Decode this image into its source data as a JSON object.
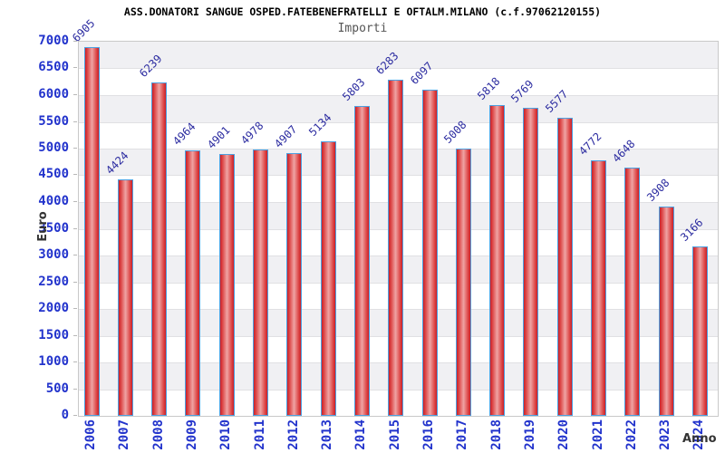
{
  "header": {
    "title": "ASS.DONATORI SANGUE OSPED.FATEBENEFRATELLI E OFTALM.MILANO (c.f.97062120155)",
    "subtitle": "Importi"
  },
  "chart_data": {
    "type": "bar",
    "title": "ASS.DONATORI SANGUE OSPED.FATEBENEFRATELLI E OFTALM.MILANO (c.f.97062120155)",
    "subtitle": "Importi",
    "xlabel": "Anno",
    "ylabel": "Euro",
    "categories": [
      "2006",
      "2007",
      "2008",
      "2009",
      "2010",
      "2011",
      "2012",
      "2013",
      "2014",
      "2015",
      "2016",
      "2017",
      "2018",
      "2019",
      "2020",
      "2021",
      "2022",
      "2023",
      "2024"
    ],
    "values": [
      6905,
      4424,
      6239,
      4964,
      4901,
      4978,
      4907,
      5134,
      5803,
      6283,
      6097,
      5008,
      5818,
      5769,
      5577,
      4772,
      4648,
      3908,
      3166
    ],
    "ylim": [
      0,
      7000
    ],
    "ytick_step": 500,
    "grid": "horizontal-bands-alternating",
    "legend": "none",
    "colors": {
      "bar_border": "#4da0e0",
      "bar_edge": "#cb1f27",
      "bar_mid": "#dd4a4a",
      "bar_center": "#efa4a4",
      "value_label": "#2b2ba0",
      "axis_text": "#2233cc",
      "band_gray": "#f0f0f3",
      "band_white": "#ffffff",
      "gridline": "#e0e0e3",
      "axis_title_text": "#333333"
    }
  }
}
